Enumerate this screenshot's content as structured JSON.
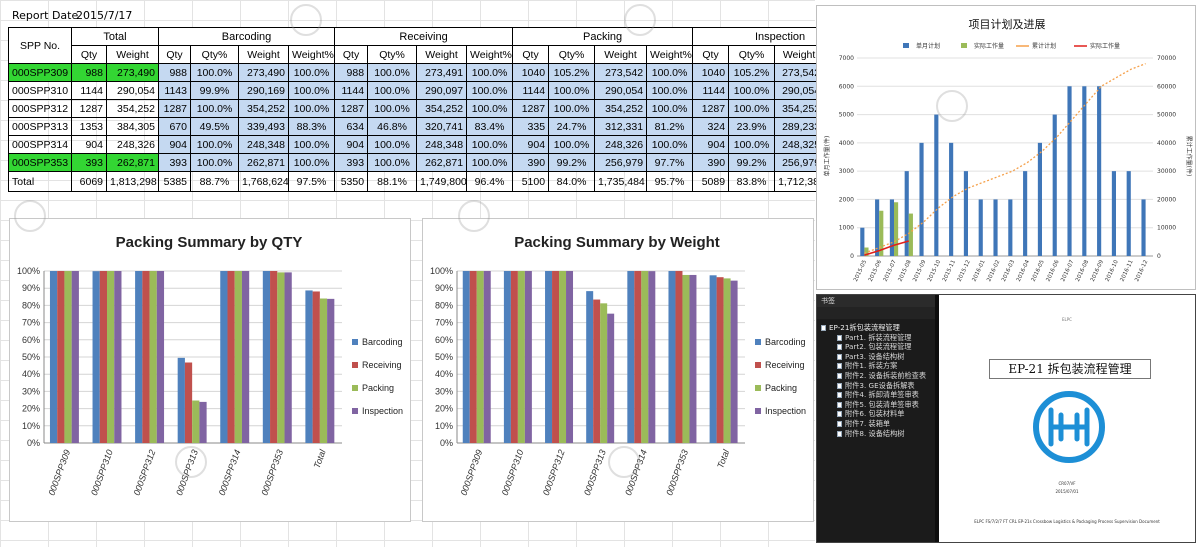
{
  "report": {
    "date_label": "Report Date",
    "date_value": "2015/7/17"
  },
  "table": {
    "spp_header": "SPP No.",
    "groups": [
      "Total",
      "Barcoding",
      "Receiving",
      "Packing",
      "Inspection"
    ],
    "subheaders": [
      "Qty",
      "Weight",
      "Qty",
      "Qty%",
      "Weight",
      "Weight%",
      "Qty",
      "Qty%",
      "Weight",
      "Weight%",
      "Qty",
      "Qty%",
      "Weight",
      "Weight%",
      "Qty",
      "Qty%",
      "Weight",
      "Weight%"
    ],
    "rows": [
      {
        "spp": "000SPP309",
        "cells": [
          "988",
          "273,490",
          "988",
          "100.0%",
          "273,490",
          "100.0%",
          "988",
          "100.0%",
          "273,491",
          "100.0%",
          "1040",
          "105.2%",
          "273,542",
          "100.0%",
          "1040",
          "105.2%",
          "273,542",
          "100.0%"
        ]
      },
      {
        "spp": "000SPP310",
        "cells": [
          "1144",
          "290,054",
          "1143",
          "99.9%",
          "290,169",
          "100.0%",
          "1144",
          "100.0%",
          "290,097",
          "100.0%",
          "1144",
          "100.0%",
          "290,054",
          "100.0%",
          "1144",
          "100.0%",
          "290,054",
          "100.0%"
        ]
      },
      {
        "spp": "000SPP312",
        "cells": [
          "1287",
          "354,252",
          "1287",
          "100.0%",
          "354,252",
          "100.0%",
          "1287",
          "100.0%",
          "354,252",
          "100.0%",
          "1287",
          "100.0%",
          "354,252",
          "100.0%",
          "1287",
          "100.0%",
          "354,252",
          "100.0%"
        ]
      },
      {
        "spp": "000SPP313",
        "cells": [
          "1353",
          "384,305",
          "670",
          "49.5%",
          "339,493",
          "88.3%",
          "634",
          "46.8%",
          "320,741",
          "83.4%",
          "335",
          "24.7%",
          "312,331",
          "81.2%",
          "324",
          "23.9%",
          "289,233",
          "75.2%"
        ]
      },
      {
        "spp": "000SPP314",
        "cells": [
          "904",
          "248,326",
          "904",
          "100.0%",
          "248,348",
          "100.0%",
          "904",
          "100.0%",
          "248,348",
          "100.0%",
          "904",
          "100.0%",
          "248,326",
          "100.0%",
          "904",
          "100.0%",
          "248,325",
          "99.9%"
        ]
      },
      {
        "spp": "000SPP353",
        "cells": [
          "393",
          "262,871",
          "393",
          "100.0%",
          "262,871",
          "100.0%",
          "393",
          "100.0%",
          "262,871",
          "100.0%",
          "390",
          "99.2%",
          "256,979",
          "97.7%",
          "390",
          "99.2%",
          "256,979",
          "97.7%"
        ]
      }
    ],
    "total_row": {
      "label": "Total",
      "cells": [
        "6069",
        "1,813,298",
        "5385",
        "88.7%",
        "1,768,624",
        "97.5%",
        "5350",
        "88.1%",
        "1,749,800",
        "96.4%",
        "5100",
        "84.0%",
        "1,735,484",
        "95.7%",
        "5089",
        "83.8%",
        "1,712,384",
        "94.4%"
      ]
    },
    "highlighted_rows": [
      0,
      5
    ],
    "colors": {
      "highlight": "#33d633",
      "cell_fill": "#c5d9f1"
    }
  },
  "colors": {
    "barcoding": "#4f81bd",
    "receiving": "#c0504d",
    "packing": "#9bbb59",
    "inspection": "#8064a2",
    "plan_bar": "#3f76b8",
    "actual_bar": "#9bbb59",
    "cumulative_line": "#f5a04a",
    "actual_line": "#e0201a"
  },
  "chart_data": [
    {
      "type": "bar",
      "title": "Packing Summary  by QTY",
      "categories": [
        "000SPP309",
        "000SPP310",
        "000SPP312",
        "000SPP313",
        "000SPP314",
        "000SPP353",
        "Total"
      ],
      "series": [
        {
          "name": "Barcoding",
          "values": [
            100,
            99.9,
            100,
            49.5,
            100,
            100,
            88.7
          ]
        },
        {
          "name": "Receiving",
          "values": [
            100,
            100,
            100,
            46.8,
            100,
            100,
            88.1
          ]
        },
        {
          "name": "Packing",
          "values": [
            100,
            100,
            100,
            24.7,
            100,
            99.2,
            84.0
          ]
        },
        {
          "name": "Inspection",
          "values": [
            100,
            100,
            100,
            23.9,
            100,
            99.2,
            83.8
          ]
        }
      ],
      "ylim": [
        0,
        100
      ],
      "yticks": [
        "0%",
        "10%",
        "20%",
        "30%",
        "40%",
        "50%",
        "60%",
        "70%",
        "80%",
        "90%",
        "100%"
      ],
      "legend": "right",
      "grid": true
    },
    {
      "type": "bar",
      "title": "Packing Summary  by Weight",
      "categories": [
        "000SPP309",
        "000SPP310",
        "000SPP312",
        "000SPP313",
        "000SPP314",
        "000SPP353",
        "Total"
      ],
      "series": [
        {
          "name": "Barcoding",
          "values": [
            100,
            100,
            100,
            88.3,
            100,
            100,
            97.5
          ]
        },
        {
          "name": "Receiving",
          "values": [
            100,
            100,
            100,
            83.4,
            100,
            100,
            96.4
          ]
        },
        {
          "name": "Packing",
          "values": [
            100,
            100,
            100,
            81.2,
            100,
            97.7,
            95.7
          ]
        },
        {
          "name": "Inspection",
          "values": [
            100,
            100,
            100,
            75.2,
            99.9,
            97.7,
            94.4
          ]
        }
      ],
      "ylim": [
        0,
        100
      ],
      "yticks": [
        "0%",
        "10%",
        "20%",
        "30%",
        "40%",
        "50%",
        "60%",
        "70%",
        "80%",
        "90%",
        "100%"
      ],
      "legend": "right",
      "grid": true
    },
    {
      "type": "bar",
      "title": "项目计划及进展",
      "categories": [
        "2015-05",
        "2015-06",
        "2015-07",
        "2015-08",
        "2015-09",
        "2015-10",
        "2015-11",
        "2015-12",
        "2016-01",
        "2016-02",
        "2016-03",
        "2016-04",
        "2016-05",
        "2016-06",
        "2016-07",
        "2016-08",
        "2016-09",
        "2016-10",
        "2016-11",
        "2016-12"
      ],
      "series": [
        {
          "name": "单月计划",
          "axis": "left",
          "values": [
            1000,
            2000,
            2000,
            3000,
            4000,
            5000,
            4000,
            3000,
            2000,
            2000,
            2000,
            3000,
            4000,
            5000,
            6000,
            6000,
            6000,
            3000,
            3000,
            2000
          ]
        },
        {
          "name": "实际工作量",
          "axis": "left",
          "values": [
            300,
            1600,
            1900,
            1500,
            null,
            null,
            null,
            null,
            null,
            null,
            null,
            null,
            null,
            null,
            null,
            null,
            null,
            null,
            null,
            null
          ]
        },
        {
          "name": "累计计划",
          "type": "line",
          "axis": "right",
          "values": [
            1000,
            3000,
            5000,
            8000,
            12000,
            17000,
            21000,
            24000,
            26000,
            28000,
            30000,
            33000,
            37000,
            42000,
            48000,
            54000,
            60000,
            63000,
            66000,
            68000
          ]
        },
        {
          "name": "实际工作量",
          "type": "line",
          "axis": "right",
          "values": [
            300,
            1900,
            3800,
            5300,
            null,
            null,
            null,
            null,
            null,
            null,
            null,
            null,
            null,
            null,
            null,
            null,
            null,
            null,
            null,
            null
          ]
        }
      ],
      "ylim_left": [
        0,
        7000
      ],
      "ylim_right": [
        0,
        70000
      ],
      "yticks_left": [
        "0",
        "1000",
        "2000",
        "3000",
        "4000",
        "5000",
        "6000",
        "7000"
      ],
      "yticks_right": [
        "0",
        "10000",
        "20000",
        "30000",
        "40000",
        "50000",
        "60000",
        "70000"
      ],
      "ylabel_left": "单月工作量(件)",
      "ylabel_right": "累计工作量(件)",
      "legend": "top",
      "grid": true
    }
  ],
  "doc_viewer": {
    "sidebar_title": "书签",
    "bookmarks": [
      {
        "label": "EP-21拆包装流程管理",
        "level": 0
      },
      {
        "label": "Part1. 拆装流程管理",
        "level": 1
      },
      {
        "label": "Part2. 包装流程管理",
        "level": 1
      },
      {
        "label": "Part3. 设备结构树",
        "level": 1
      },
      {
        "label": "附件1. 拆装方案",
        "level": 1
      },
      {
        "label": "附件2. 设备拆装前检查表",
        "level": 1
      },
      {
        "label": "附件3. GE设备拆解表",
        "level": 1
      },
      {
        "label": "附件4. 拆卸清单签审表",
        "level": 1
      },
      {
        "label": "附件5. 包装清单签审表",
        "level": 1
      },
      {
        "label": "附件6. 包装材料单",
        "level": 1
      },
      {
        "label": "附件7. 装箱单",
        "level": 1
      },
      {
        "label": "附件8. 设备结构树",
        "level": 1
      }
    ],
    "page": {
      "header": "ELPC",
      "title": "EP-21 拆包装流程管理",
      "version": "CR07/VF",
      "date": "2015/07/01",
      "footer": "ELPC FS/7/2/7 FT CRL EP-21s  Crossbow Logistics & Packaging Process Supervision Document"
    }
  }
}
